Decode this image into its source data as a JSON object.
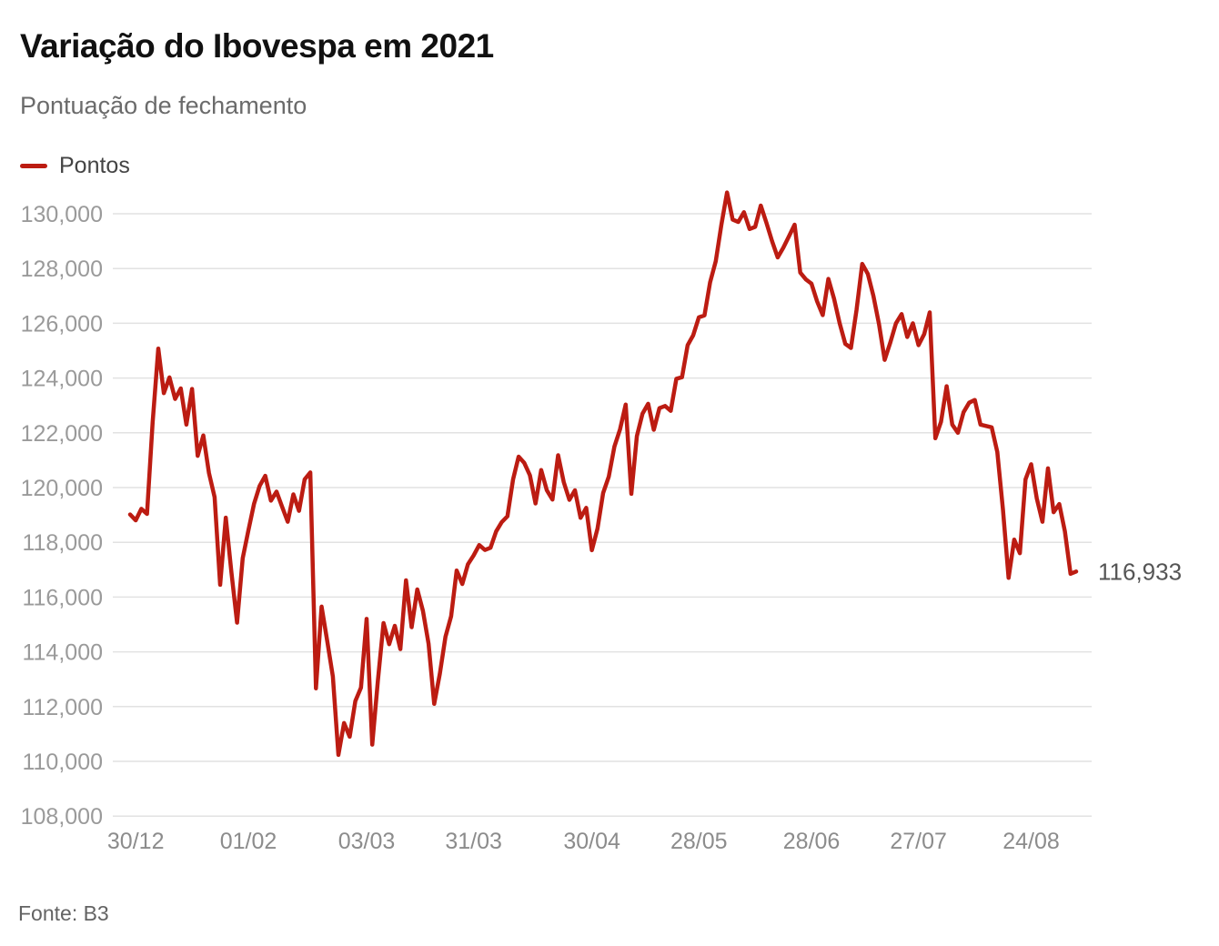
{
  "header": {
    "title": "Variação do Ibovespa em 2021",
    "subtitle": "Pontuação de fechamento"
  },
  "legend": {
    "label": "Pontos"
  },
  "annotation": {
    "label": "116,933"
  },
  "source": {
    "text": "Fonte: B3"
  },
  "colors": {
    "line": "#bc1c12",
    "grid": "#e2e2e2",
    "y_label": "#9a9a9a",
    "x_label": "#8c8c8c",
    "annotation": "#555555",
    "background": "#ffffff"
  },
  "chart_data": {
    "type": "line",
    "title": "Variação do Ibovespa em 2021",
    "subtitle": "Pontuação de fechamento",
    "series_name": "Pontos",
    "ylim": [
      108000,
      130000
    ],
    "grid": "horizontal",
    "legend_position": "top-left",
    "end_value_label": 116933,
    "y_ticks": [
      130000,
      128000,
      126000,
      124000,
      122000,
      120000,
      118000,
      116000,
      114000,
      112000,
      110000,
      108000
    ],
    "x_ticks": [
      {
        "label": "30/12",
        "index": 1
      },
      {
        "label": "01/02",
        "index": 21
      },
      {
        "label": "03/03",
        "index": 42
      },
      {
        "label": "31/03",
        "index": 61
      },
      {
        "label": "30/04",
        "index": 82
      },
      {
        "label": "28/05",
        "index": 101
      },
      {
        "label": "28/06",
        "index": 121
      },
      {
        "label": "27/07",
        "index": 140
      },
      {
        "label": "24/08",
        "index": 160
      }
    ],
    "values": [
      119017,
      118805,
      119223,
      119037,
      122386,
      125077,
      123450,
      124024,
      123236,
      123621,
      122298,
      123602,
      121161,
      121902,
      120530,
      119651,
      116450,
      118900,
      116900,
      115068,
      117420,
      118430,
      119400,
      120060,
      120430,
      119520,
      119850,
      119300,
      118750,
      119750,
      119150,
      120300,
      120550,
      112667,
      115650,
      114400,
      113100,
      110235,
      111400,
      110900,
      112200,
      112690,
      115202,
      110611,
      112950,
      115050,
      114280,
      114950,
      114100,
      116610,
      114900,
      116280,
      115500,
      114300,
      112100,
      113200,
      114550,
      115300,
      116970,
      116480,
      117200,
      117518,
      117900,
      117720,
      117800,
      118400,
      118740,
      118950,
      120300,
      121130,
      120900,
      120450,
      119420,
      120640,
      119900,
      119560,
      121180,
      120200,
      119550,
      119900,
      118894,
      119260,
      117712,
      118500,
      119800,
      120400,
      121500,
      122130,
      123030,
      119770,
      121880,
      122700,
      123060,
      122110,
      122900,
      122980,
      122800,
      123975,
      124030,
      125200,
      125561,
      126216,
      126285,
      127500,
      128267,
      129602,
      130776,
      129787,
      129702,
      130056,
      129441,
      129520,
      130300,
      129670,
      129000,
      128405,
      128760,
      129180,
      129600,
      127850,
      127600,
      127450,
      126802,
      126300,
      127621,
      126900,
      126000,
      125250,
      125100,
      126500,
      128168,
      127800,
      127000,
      125960,
      124666,
      125300,
      126000,
      126337,
      125500,
      126000,
      125200,
      125600,
      126400,
      121800,
      122400,
      123700,
      122300,
      122000,
      122750,
      123100,
      123200,
      122300,
      122250,
      122200,
      121300,
      119200,
      116700,
      118100,
      117600,
      120300,
      120850,
      119600,
      118750,
      120700,
      119100,
      119400,
      118400,
      116850,
      116933
    ]
  }
}
